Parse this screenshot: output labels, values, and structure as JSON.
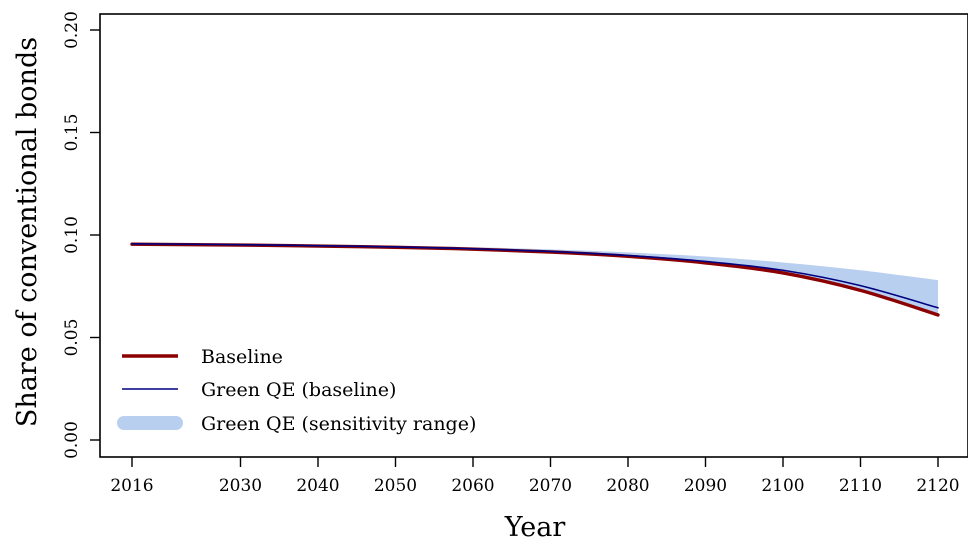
{
  "chart_data": {
    "type": "line",
    "xlabel": "Year",
    "ylabel": "Share of conventional bonds",
    "xlim": [
      2016,
      2120
    ],
    "ylim": [
      0.0,
      0.2
    ],
    "x_ticks": [
      2016,
      2030,
      2040,
      2050,
      2060,
      2070,
      2080,
      2090,
      2100,
      2110,
      2120
    ],
    "y_ticks": [
      "0.00",
      "0.05",
      "0.10",
      "0.15",
      "0.20"
    ],
    "grid": false,
    "legend_position": "bottom-left",
    "x": [
      2016,
      2030,
      2040,
      2050,
      2060,
      2070,
      2080,
      2090,
      2100,
      2110,
      2120
    ],
    "series": [
      {
        "name": "Baseline",
        "type": "line",
        "color": "#8b0000",
        "values": [
          0.0955,
          0.0951,
          0.0946,
          0.094,
          0.0931,
          0.0917,
          0.0896,
          0.0864,
          0.0815,
          0.073,
          0.061
        ]
      },
      {
        "name": "Green QE (baseline)",
        "type": "line",
        "color": "#000080",
        "values": [
          0.0957,
          0.0953,
          0.0948,
          0.0942,
          0.0933,
          0.092,
          0.09,
          0.0871,
          0.0828,
          0.0753,
          0.0645
        ]
      },
      {
        "name": "Green QE (sensitivity range)",
        "type": "band",
        "color": "#b8cff0",
        "lower": [
          0.0955,
          0.0951,
          0.0946,
          0.094,
          0.0931,
          0.0917,
          0.0896,
          0.0864,
          0.0815,
          0.073,
          0.061
        ],
        "upper": [
          0.096,
          0.0956,
          0.0952,
          0.0947,
          0.094,
          0.093,
          0.0915,
          0.0895,
          0.0866,
          0.0828,
          0.078
        ]
      }
    ]
  }
}
